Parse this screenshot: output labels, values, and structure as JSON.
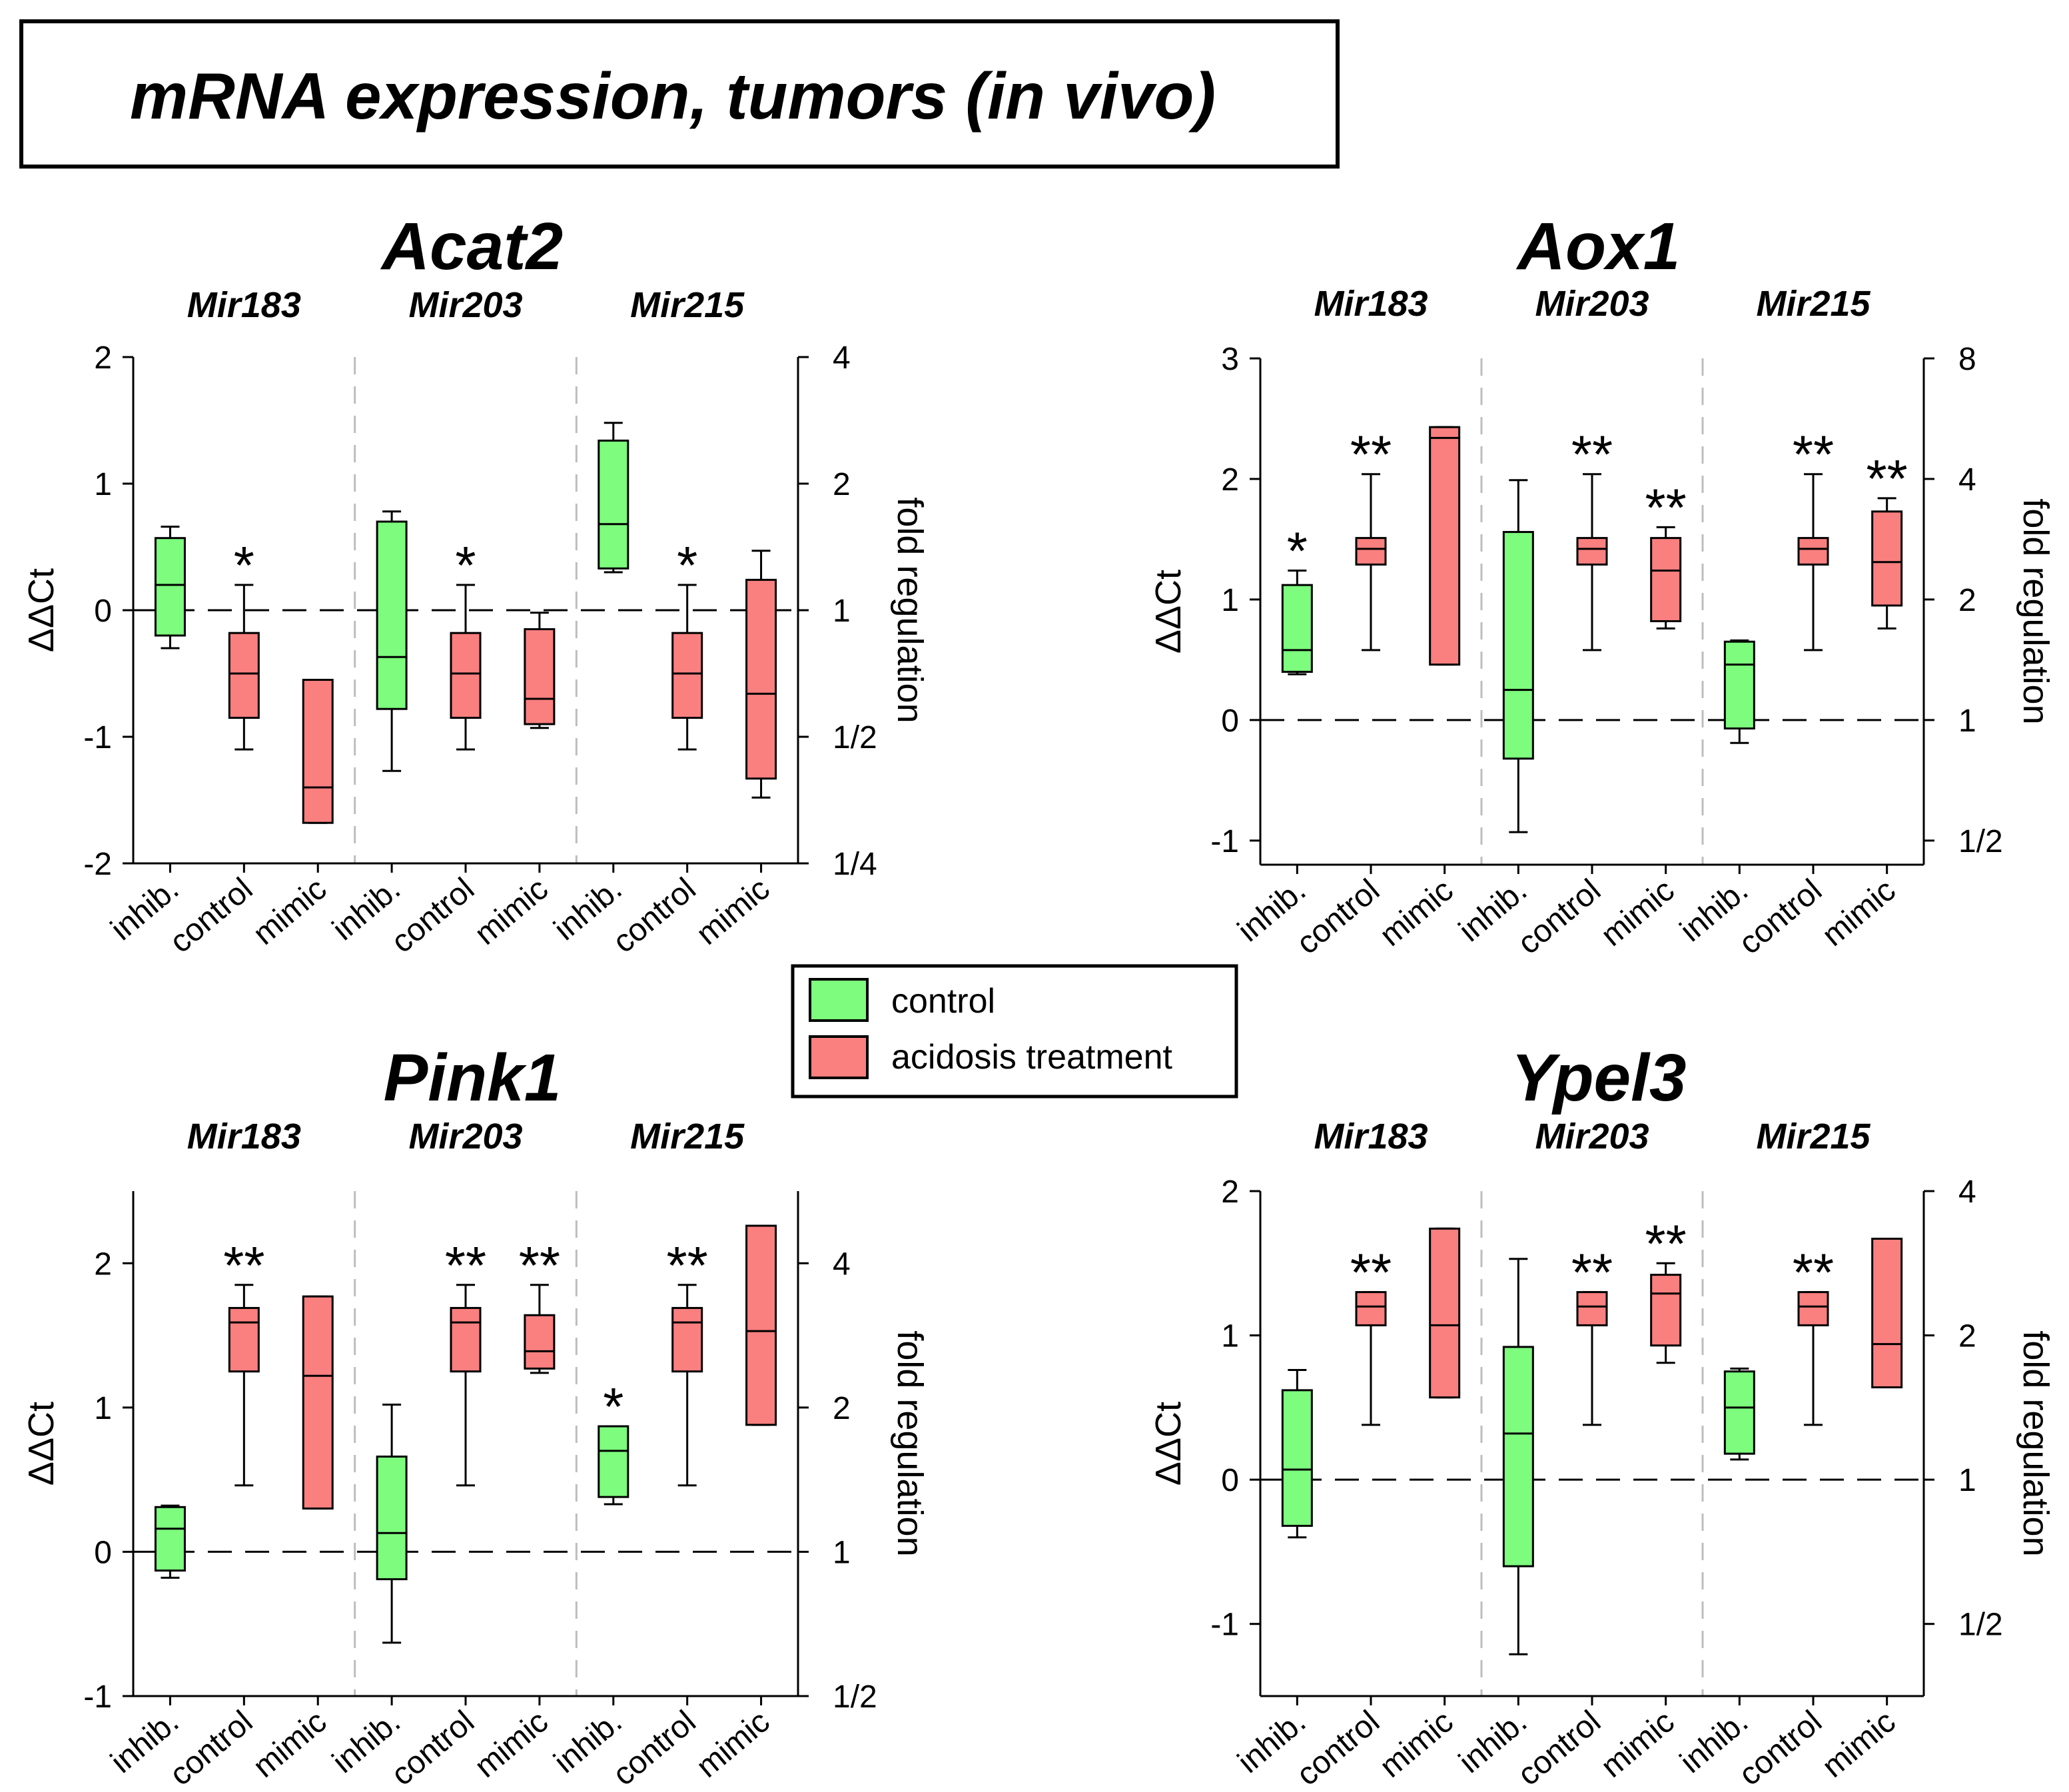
{
  "title": "mRNA expression, tumors (in vivo)",
  "legend": {
    "items": [
      {
        "label": "control",
        "color": "#7dfc7d"
      },
      {
        "label": "acidosis treatment",
        "color": "#fa7f7f"
      }
    ]
  },
  "colors": {
    "control": "#7dfc7d",
    "acidosis": "#fa7f7f"
  },
  "chart_data": [
    {
      "type": "box",
      "gene": "Acat2",
      "groups": [
        "Mir183",
        "Mir203",
        "Mir215"
      ],
      "categories": [
        "inhib.",
        "control",
        "mimic"
      ],
      "ylabel": "ΔΔCt",
      "y2label": "fold regulation",
      "ylim": [
        -2,
        2
      ],
      "yticks": [
        {
          "v": 2,
          "label": "2"
        },
        {
          "v": 1,
          "label": "1"
        },
        {
          "v": 0,
          "label": "0"
        },
        {
          "v": -1,
          "label": "-1"
        },
        {
          "v": -2,
          "label": "-2"
        }
      ],
      "y2ticks": [
        {
          "v": 2,
          "label": "4"
        },
        {
          "v": 1,
          "label": "2"
        },
        {
          "v": 0,
          "label": "1"
        },
        {
          "v": -1,
          "label": "1/2"
        },
        {
          "v": -2,
          "label": "1/4"
        }
      ],
      "boxes": [
        {
          "group": "Mir183",
          "cat": "inhib.",
          "series": "control",
          "min": -0.3,
          "q1": -0.2,
          "median": 0.2,
          "q3": 0.57,
          "max": 0.66,
          "sig": ""
        },
        {
          "group": "Mir183",
          "cat": "control",
          "series": "acidosis",
          "min": -1.1,
          "q1": -0.85,
          "median": -0.5,
          "q3": -0.18,
          "max": 0.2,
          "sig": "*"
        },
        {
          "group": "Mir183",
          "cat": "mimic",
          "series": "acidosis",
          "min": -1.68,
          "q1": -1.68,
          "median": -1.4,
          "q3": -0.55,
          "max": -0.55,
          "sig": ""
        },
        {
          "group": "Mir203",
          "cat": "inhib.",
          "series": "control",
          "min": -1.27,
          "q1": -0.78,
          "median": -0.37,
          "q3": 0.7,
          "max": 0.78,
          "sig": ""
        },
        {
          "group": "Mir203",
          "cat": "control",
          "series": "acidosis",
          "min": -1.1,
          "q1": -0.85,
          "median": -0.5,
          "q3": -0.18,
          "max": 0.2,
          "sig": "*"
        },
        {
          "group": "Mir203",
          "cat": "mimic",
          "series": "acidosis",
          "min": -0.93,
          "q1": -0.9,
          "median": -0.7,
          "q3": -0.15,
          "max": -0.02,
          "sig": ""
        },
        {
          "group": "Mir215",
          "cat": "inhib.",
          "series": "control",
          "min": 0.3,
          "q1": 0.33,
          "median": 0.68,
          "q3": 1.34,
          "max": 1.48,
          "sig": ""
        },
        {
          "group": "Mir215",
          "cat": "control",
          "series": "acidosis",
          "min": -1.1,
          "q1": -0.85,
          "median": -0.5,
          "q3": -0.18,
          "max": 0.2,
          "sig": "*"
        },
        {
          "group": "Mir215",
          "cat": "mimic",
          "series": "acidosis",
          "min": -1.48,
          "q1": -1.33,
          "median": -0.66,
          "q3": 0.24,
          "max": 0.47,
          "sig": ""
        }
      ]
    },
    {
      "type": "box",
      "gene": "Aox1",
      "groups": [
        "Mir183",
        "Mir203",
        "Mir215"
      ],
      "categories": [
        "inhib.",
        "control",
        "mimic"
      ],
      "ylabel": "ΔΔCt",
      "y2label": "fold regulation",
      "ylim": [
        -1.2,
        3
      ],
      "yticks": [
        {
          "v": 3,
          "label": "3"
        },
        {
          "v": 2,
          "label": "2"
        },
        {
          "v": 1,
          "label": "1"
        },
        {
          "v": 0,
          "label": "0"
        },
        {
          "v": -1,
          "label": "-1"
        }
      ],
      "y2ticks": [
        {
          "v": 3,
          "label": "8"
        },
        {
          "v": 2,
          "label": "4"
        },
        {
          "v": 1,
          "label": "2"
        },
        {
          "v": 0,
          "label": "1"
        },
        {
          "v": -1,
          "label": "1/2"
        }
      ],
      "boxes": [
        {
          "group": "Mir183",
          "cat": "inhib.",
          "series": "control",
          "min": 0.38,
          "q1": 0.4,
          "median": 0.58,
          "q3": 1.12,
          "max": 1.24,
          "sig": "*"
        },
        {
          "group": "Mir183",
          "cat": "control",
          "series": "acidosis",
          "min": 0.58,
          "q1": 1.29,
          "median": 1.42,
          "q3": 1.51,
          "max": 2.04,
          "sig": "**"
        },
        {
          "group": "Mir183",
          "cat": "mimic",
          "series": "acidosis",
          "min": 0.46,
          "q1": 0.46,
          "median": 2.34,
          "q3": 2.43,
          "max": 2.43,
          "sig": ""
        },
        {
          "group": "Mir203",
          "cat": "inhib.",
          "series": "control",
          "min": -0.93,
          "q1": -0.32,
          "median": 0.25,
          "q3": 1.56,
          "max": 1.99,
          "sig": ""
        },
        {
          "group": "Mir203",
          "cat": "control",
          "series": "acidosis",
          "min": 0.58,
          "q1": 1.29,
          "median": 1.42,
          "q3": 1.51,
          "max": 2.04,
          "sig": "**"
        },
        {
          "group": "Mir203",
          "cat": "mimic",
          "series": "acidosis",
          "min": 0.76,
          "q1": 0.82,
          "median": 1.24,
          "q3": 1.51,
          "max": 1.6,
          "sig": "**"
        },
        {
          "group": "Mir215",
          "cat": "inhib.",
          "series": "control",
          "min": -0.19,
          "q1": -0.07,
          "median": 0.46,
          "q3": 0.65,
          "max": 0.66,
          "sig": ""
        },
        {
          "group": "Mir215",
          "cat": "control",
          "series": "acidosis",
          "min": 0.58,
          "q1": 1.29,
          "median": 1.42,
          "q3": 1.51,
          "max": 2.04,
          "sig": "**"
        },
        {
          "group": "Mir215",
          "cat": "mimic",
          "series": "acidosis",
          "min": 0.76,
          "q1": 0.95,
          "median": 1.31,
          "q3": 1.73,
          "max": 1.84,
          "sig": "**"
        }
      ]
    },
    {
      "type": "box",
      "gene": "Pink1",
      "groups": [
        "Mir183",
        "Mir203",
        "Mir215"
      ],
      "categories": [
        "inhib.",
        "control",
        "mimic"
      ],
      "ylabel": "ΔΔCt",
      "y2label": "fold regulation",
      "ylim": [
        -1,
        2.5
      ],
      "yticks": [
        {
          "v": 2,
          "label": "2"
        },
        {
          "v": 1,
          "label": "1"
        },
        {
          "v": 0,
          "label": "0"
        },
        {
          "v": -1,
          "label": "-1"
        }
      ],
      "y2ticks": [
        {
          "v": 2,
          "label": "4"
        },
        {
          "v": 1,
          "label": "2"
        },
        {
          "v": 0,
          "label": "1"
        },
        {
          "v": -1,
          "label": "1/2"
        }
      ],
      "boxes": [
        {
          "group": "Mir183",
          "cat": "inhib.",
          "series": "control",
          "min": -0.18,
          "q1": -0.13,
          "median": 0.16,
          "q3": 0.31,
          "max": 0.32,
          "sig": ""
        },
        {
          "group": "Mir183",
          "cat": "control",
          "series": "acidosis",
          "min": 0.46,
          "q1": 1.25,
          "median": 1.59,
          "q3": 1.69,
          "max": 1.85,
          "sig": "**"
        },
        {
          "group": "Mir183",
          "cat": "mimic",
          "series": "acidosis",
          "min": 0.3,
          "q1": 0.3,
          "median": 1.22,
          "q3": 1.77,
          "max": 1.77,
          "sig": ""
        },
        {
          "group": "Mir203",
          "cat": "inhib.",
          "series": "control",
          "min": -0.63,
          "q1": -0.19,
          "median": 0.13,
          "q3": 0.66,
          "max": 1.02,
          "sig": ""
        },
        {
          "group": "Mir203",
          "cat": "control",
          "series": "acidosis",
          "min": 0.46,
          "q1": 1.25,
          "median": 1.59,
          "q3": 1.69,
          "max": 1.85,
          "sig": "**"
        },
        {
          "group": "Mir203",
          "cat": "mimic",
          "series": "acidosis",
          "min": 1.24,
          "q1": 1.27,
          "median": 1.39,
          "q3": 1.64,
          "max": 1.85,
          "sig": "**"
        },
        {
          "group": "Mir215",
          "cat": "inhib.",
          "series": "control",
          "min": 0.33,
          "q1": 0.38,
          "median": 0.7,
          "q3": 0.87,
          "max": 0.87,
          "sig": "*"
        },
        {
          "group": "Mir215",
          "cat": "control",
          "series": "acidosis",
          "min": 0.46,
          "q1": 1.25,
          "median": 1.59,
          "q3": 1.69,
          "max": 1.85,
          "sig": "**"
        },
        {
          "group": "Mir215",
          "cat": "mimic",
          "series": "acidosis",
          "min": 0.88,
          "q1": 0.88,
          "median": 1.53,
          "q3": 2.26,
          "max": 2.26,
          "sig": ""
        }
      ]
    },
    {
      "type": "box",
      "gene": "Ypel3",
      "groups": [
        "Mir183",
        "Mir203",
        "Mir215"
      ],
      "categories": [
        "inhib.",
        "control",
        "mimic"
      ],
      "ylabel": "ΔΔCt",
      "y2label": "fold regulation",
      "ylim": [
        -1.5,
        2
      ],
      "yticks": [
        {
          "v": 2,
          "label": "2"
        },
        {
          "v": 1,
          "label": "1"
        },
        {
          "v": 0,
          "label": "0"
        },
        {
          "v": -1,
          "label": "-1"
        }
      ],
      "y2ticks": [
        {
          "v": 2,
          "label": "4"
        },
        {
          "v": 1,
          "label": "2"
        },
        {
          "v": 0,
          "label": "1"
        },
        {
          "v": -1,
          "label": "1/2"
        }
      ],
      "boxes": [
        {
          "group": "Mir183",
          "cat": "inhib.",
          "series": "control",
          "min": -0.4,
          "q1": -0.32,
          "median": 0.07,
          "q3": 0.62,
          "max": 0.76,
          "sig": ""
        },
        {
          "group": "Mir183",
          "cat": "control",
          "series": "acidosis",
          "min": 0.38,
          "q1": 1.07,
          "median": 1.2,
          "q3": 1.3,
          "max": 1.3,
          "sig": "**"
        },
        {
          "group": "Mir183",
          "cat": "mimic",
          "series": "acidosis",
          "min": 0.57,
          "q1": 0.57,
          "median": 1.07,
          "q3": 1.74,
          "max": 1.74,
          "sig": ""
        },
        {
          "group": "Mir203",
          "cat": "inhib.",
          "series": "control",
          "min": -1.21,
          "q1": -0.6,
          "median": 0.32,
          "q3": 0.92,
          "max": 1.53,
          "sig": ""
        },
        {
          "group": "Mir203",
          "cat": "control",
          "series": "acidosis",
          "min": 0.38,
          "q1": 1.07,
          "median": 1.2,
          "q3": 1.3,
          "max": 1.3,
          "sig": "**"
        },
        {
          "group": "Mir203",
          "cat": "mimic",
          "series": "acidosis",
          "min": 0.81,
          "q1": 0.93,
          "median": 1.29,
          "q3": 1.42,
          "max": 1.5,
          "sig": "**"
        },
        {
          "group": "Mir215",
          "cat": "inhib.",
          "series": "control",
          "min": 0.14,
          "q1": 0.18,
          "median": 0.5,
          "q3": 0.75,
          "max": 0.77,
          "sig": ""
        },
        {
          "group": "Mir215",
          "cat": "control",
          "series": "acidosis",
          "min": 0.38,
          "q1": 1.07,
          "median": 1.2,
          "q3": 1.3,
          "max": 1.3,
          "sig": "**"
        },
        {
          "group": "Mir215",
          "cat": "mimic",
          "series": "acidosis",
          "min": 0.64,
          "q1": 0.64,
          "median": 0.94,
          "q3": 1.67,
          "max": 1.67,
          "sig": ""
        }
      ]
    }
  ]
}
